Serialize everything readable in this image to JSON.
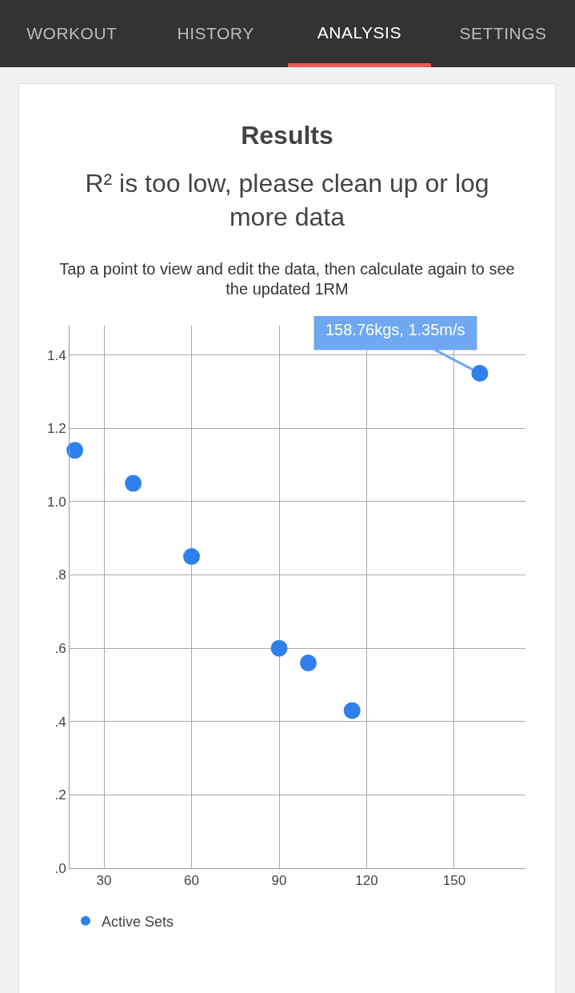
{
  "chart_data": {
    "type": "scatter",
    "title": "Results",
    "subtitle": "R² is too low, please clean up or log more data",
    "annotations": [
      "Tap a point to view and edit the data, then calculate again to see the updated 1RM",
      "WORKOUT",
      "HISTORY",
      "ANALYSIS",
      "SETTINGS",
      {
        "text": "158.76kgs, 1.35m/s",
        "x": 158.76,
        "y": 1.35
      }
    ],
    "series": [
      {
        "name": "Active Sets",
        "color": "#2f80ed",
        "x": [
          20,
          40,
          60,
          90,
          100,
          115,
          158.76
        ],
        "values": [
          1.14,
          1.05,
          0.85,
          0.6,
          0.56,
          0.43,
          1.35
        ]
      }
    ],
    "xlim": [
      18.2,
      174.4
    ],
    "xticks": [
      30,
      60,
      90,
      120,
      150
    ],
    "ylim": [
      0,
      1.48
    ],
    "yticks": [
      {
        "value": 0,
        "label": ".0"
      },
      {
        "value": 0.2,
        "label": ".2"
      },
      {
        "value": 0.4,
        "label": ".4"
      },
      {
        "value": 0.6,
        "label": ".6"
      },
      {
        "value": 0.8,
        "label": ".8"
      },
      {
        "value": 1,
        "label": "1.0"
      },
      1.2,
      1.4
    ],
    "grid": true,
    "legend": "bottom left",
    "marker": "circle"
  }
}
